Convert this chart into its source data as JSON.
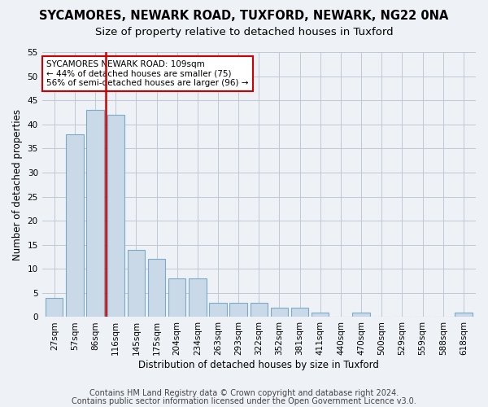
{
  "title": "SYCAMORES, NEWARK ROAD, TUXFORD, NEWARK, NG22 0NA",
  "subtitle": "Size of property relative to detached houses in Tuxford",
  "xlabel": "Distribution of detached houses by size in Tuxford",
  "ylabel": "Number of detached properties",
  "bar_values": [
    4,
    38,
    43,
    42,
    14,
    12,
    8,
    8,
    3,
    3,
    3,
    2,
    2,
    1,
    0,
    1,
    0,
    0,
    0,
    0,
    1
  ],
  "bar_labels": [
    "27sqm",
    "57sqm",
    "86sqm",
    "116sqm",
    "145sqm",
    "175sqm",
    "204sqm",
    "234sqm",
    "263sqm",
    "293sqm",
    "322sqm",
    "352sqm",
    "381sqm",
    "411sqm",
    "440sqm",
    "470sqm",
    "500sqm",
    "529sqm",
    "559sqm",
    "588sqm",
    "618sqm"
  ],
  "bar_color": "#c9d9e8",
  "bar_edge_color": "#7aaac8",
  "vline_color": "#cc0000",
  "vline_x": 2.5,
  "annotation_text": "SYCAMORES NEWARK ROAD: 109sqm\n← 44% of detached houses are smaller (75)\n56% of semi-detached houses are larger (96) →",
  "annotation_box_color": "#ffffff",
  "annotation_box_edge": "#cc0000",
  "ylim": [
    0,
    55
  ],
  "yticks": [
    0,
    5,
    10,
    15,
    20,
    25,
    30,
    35,
    40,
    45,
    50,
    55
  ],
  "footer_line1": "Contains HM Land Registry data © Crown copyright and database right 2024.",
  "footer_line2": "Contains public sector information licensed under the Open Government Licence v3.0.",
  "bg_color": "#eef2f7",
  "plot_bg_color": "#eef2f7",
  "grid_color": "#c0c8d4",
  "title_fontsize": 10.5,
  "subtitle_fontsize": 9.5,
  "label_fontsize": 8.5,
  "tick_fontsize": 7.5,
  "annotation_fontsize": 7.5,
  "footer_fontsize": 7
}
